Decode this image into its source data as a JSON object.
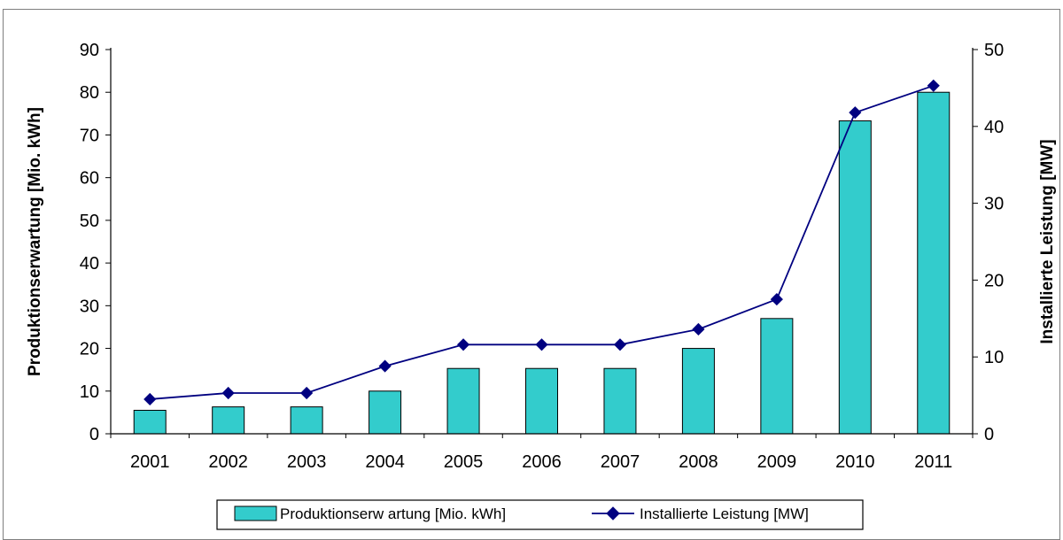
{
  "chart_data": {
    "type": "bar",
    "categories": [
      "2001",
      "2002",
      "2003",
      "2004",
      "2005",
      "2006",
      "2007",
      "2008",
      "2009",
      "2010",
      "2011"
    ],
    "series": [
      {
        "name": "Produktionserw artung [Mio. kWh]",
        "type": "bar",
        "axis": "left",
        "values": [
          5.5,
          6.3,
          6.3,
          10.0,
          15.3,
          15.3,
          15.3,
          20.0,
          27.0,
          73.3,
          80.0
        ],
        "color": "#33cccc"
      },
      {
        "name": "Installierte Leistung [MW]",
        "type": "line",
        "axis": "right",
        "values": [
          4.5,
          5.3,
          5.3,
          8.8,
          11.6,
          11.6,
          11.6,
          13.6,
          17.5,
          41.8,
          45.3
        ],
        "color": "#000080"
      }
    ],
    "y_left": {
      "label": "Produktionserwartung [Mio. kWh]",
      "ylim": [
        0,
        90
      ],
      "ticks": [
        0,
        10,
        20,
        30,
        40,
        50,
        60,
        70,
        80,
        90
      ]
    },
    "y_right": {
      "label": "Installierte Leistung [MW]",
      "ylim": [
        0,
        50
      ],
      "ticks": [
        0,
        10,
        20,
        30,
        40,
        50
      ]
    },
    "grid": false,
    "legend_position": "bottom"
  }
}
